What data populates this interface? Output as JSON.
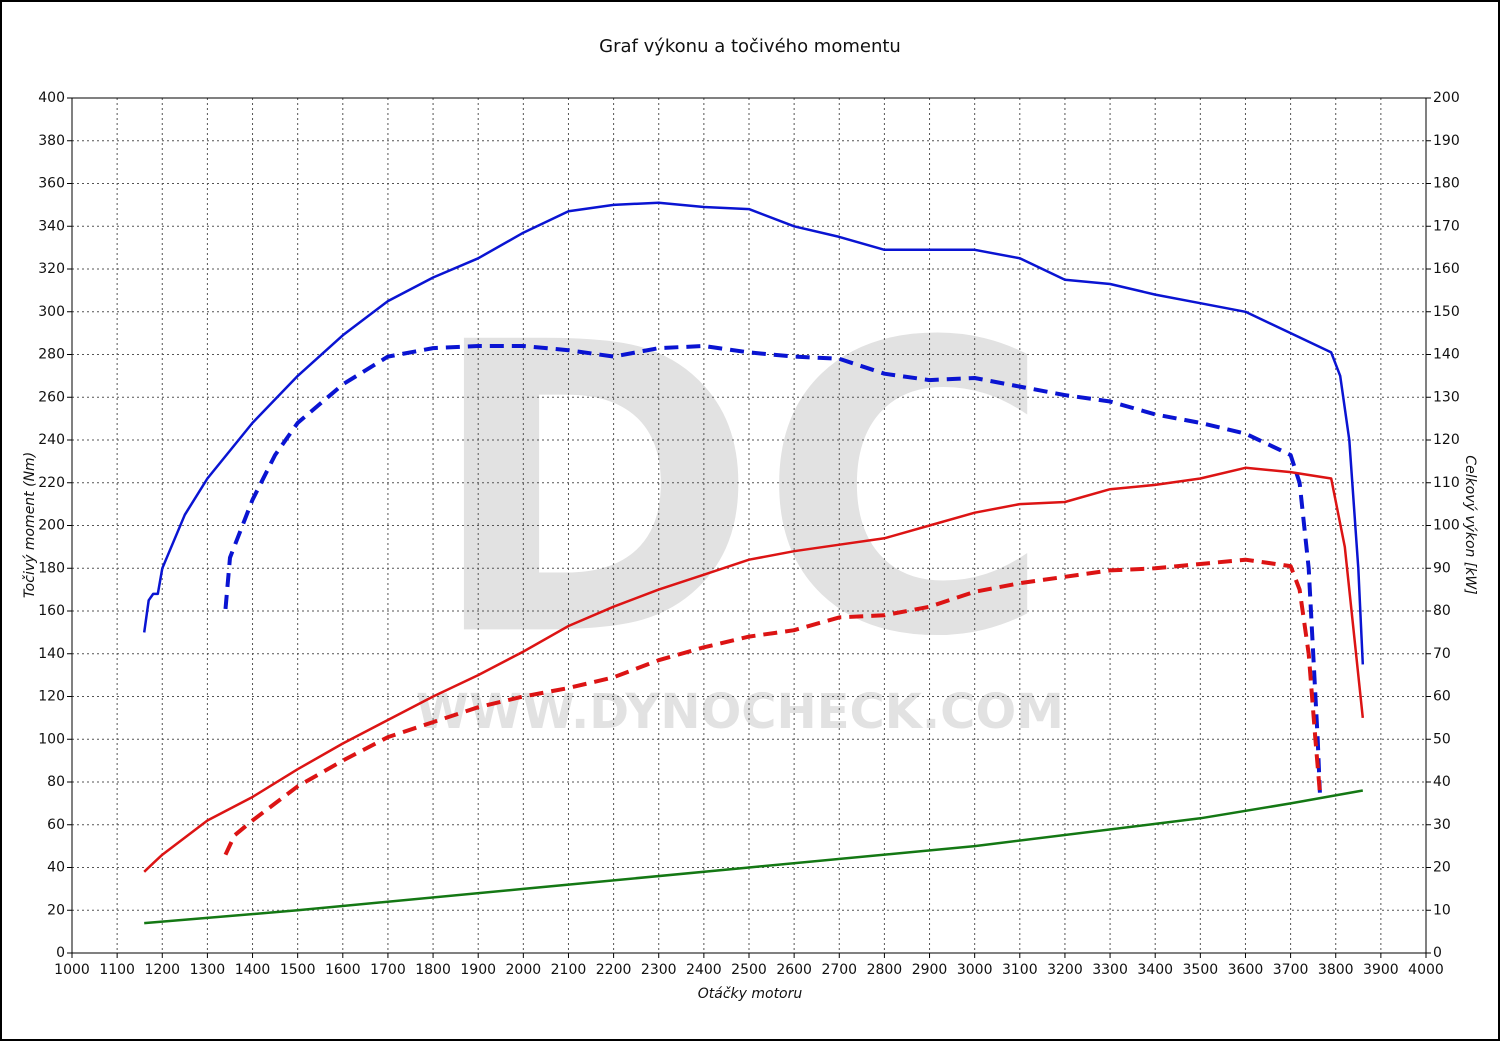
{
  "chart_data": {
    "type": "line",
    "title": "Graf výkonu a točivého momentu",
    "xlabel": "Otáčky motoru",
    "ylabel": "Točivý moment (Nm)",
    "y2label": "Celkový výkon [kW]",
    "watermark": "DC",
    "watermark_url": "WWW.DYNOCHECK.COM",
    "xlim": [
      1000,
      4000
    ],
    "xticks": [
      1000,
      1100,
      1200,
      1300,
      1400,
      1500,
      1600,
      1700,
      1800,
      1900,
      2000,
      2100,
      2200,
      2300,
      2400,
      2500,
      2600,
      2700,
      2800,
      2900,
      3000,
      3100,
      3200,
      3300,
      3400,
      3500,
      3600,
      3700,
      3800,
      3900,
      4000
    ],
    "ylim": [
      0,
      400
    ],
    "yticks": [
      0,
      20,
      40,
      60,
      80,
      100,
      120,
      140,
      160,
      180,
      200,
      220,
      240,
      260,
      280,
      300,
      320,
      340,
      360,
      380,
      400
    ],
    "y2lim": [
      0,
      200
    ],
    "y2ticks": [
      0,
      10,
      20,
      30,
      40,
      50,
      60,
      70,
      80,
      90,
      100,
      110,
      120,
      130,
      140,
      150,
      160,
      170,
      180,
      190,
      200
    ],
    "grid": true,
    "series": [
      {
        "color": "#0a14d2",
        "dashed": false,
        "x": [
          1160,
          1170,
          1180,
          1190,
          1200,
          1250,
          1300,
          1400,
          1500,
          1600,
          1700,
          1800,
          1900,
          2000,
          2100,
          2200,
          2300,
          2400,
          2500,
          2600,
          2700,
          2800,
          2900,
          3000,
          3100,
          3200,
          3300,
          3400,
          3500,
          3600,
          3700,
          3790,
          3810,
          3830,
          3850,
          3860
        ],
        "values": [
          150,
          165,
          168,
          168,
          180,
          205,
          222,
          248,
          270,
          289,
          305,
          316,
          325,
          337,
          347,
          350,
          351,
          349,
          348,
          340,
          335,
          329,
          329,
          329,
          325,
          315,
          313,
          308,
          304,
          300,
          290,
          281,
          270,
          240,
          180,
          135
        ]
      },
      {
        "color": "#0a14d2",
        "dashed": true,
        "x": [
          1340,
          1350,
          1400,
          1450,
          1500,
          1600,
          1700,
          1800,
          1900,
          2000,
          2100,
          2200,
          2300,
          2400,
          2500,
          2600,
          2700,
          2800,
          2900,
          3000,
          3100,
          3200,
          3300,
          3400,
          3500,
          3600,
          3700,
          3720,
          3740,
          3750,
          3760,
          3765
        ],
        "values": [
          161,
          185,
          212,
          233,
          248,
          266,
          279,
          283,
          284,
          284,
          282,
          279,
          283,
          284,
          281,
          279,
          278,
          271,
          268,
          269,
          265,
          261,
          258,
          252,
          248,
          243,
          233,
          220,
          180,
          140,
          100,
          75
        ]
      },
      {
        "color": "#dc1414",
        "dashed": false,
        "axis": "y2",
        "x": [
          1160,
          1180,
          1200,
          1300,
          1400,
          1500,
          1600,
          1700,
          1800,
          1900,
          2000,
          2100,
          2200,
          2300,
          2400,
          2500,
          2600,
          2700,
          2800,
          2900,
          3000,
          3100,
          3200,
          3300,
          3400,
          3500,
          3600,
          3700,
          3790,
          3820,
          3840,
          3860
        ],
        "values": [
          19,
          21,
          23,
          31,
          36.5,
          43,
          49,
          54.5,
          60,
          65,
          70.5,
          76.5,
          81,
          85,
          88.5,
          92,
          94,
          95.5,
          97,
          100,
          103,
          105,
          105.5,
          108.5,
          109.5,
          111,
          113.5,
          112.5,
          111,
          95,
          75,
          55
        ]
      },
      {
        "color": "#dc1414",
        "dashed": true,
        "axis": "y2",
        "x": [
          1340,
          1360,
          1400,
          1500,
          1600,
          1700,
          1800,
          1900,
          2000,
          2100,
          2200,
          2300,
          2400,
          2500,
          2600,
          2700,
          2800,
          2900,
          3000,
          3100,
          3200,
          3300,
          3400,
          3500,
          3600,
          3700,
          3720,
          3740,
          3755,
          3765
        ],
        "values": [
          23,
          27.5,
          31,
          39,
          45,
          50.5,
          54,
          57.5,
          60,
          62,
          64.5,
          68.5,
          71.5,
          74,
          75.5,
          78.5,
          79,
          81,
          84.5,
          86.5,
          88,
          89.5,
          90,
          91,
          92,
          90.5,
          85,
          70,
          50,
          37.5
        ]
      },
      {
        "color": "#147814",
        "dashed": false,
        "axis": "y2",
        "x": [
          1160,
          1500,
          2000,
          2500,
          3000,
          3500,
          3700,
          3860
        ],
        "values": [
          7,
          10,
          15,
          20,
          25,
          31.5,
          35,
          38
        ]
      }
    ]
  }
}
